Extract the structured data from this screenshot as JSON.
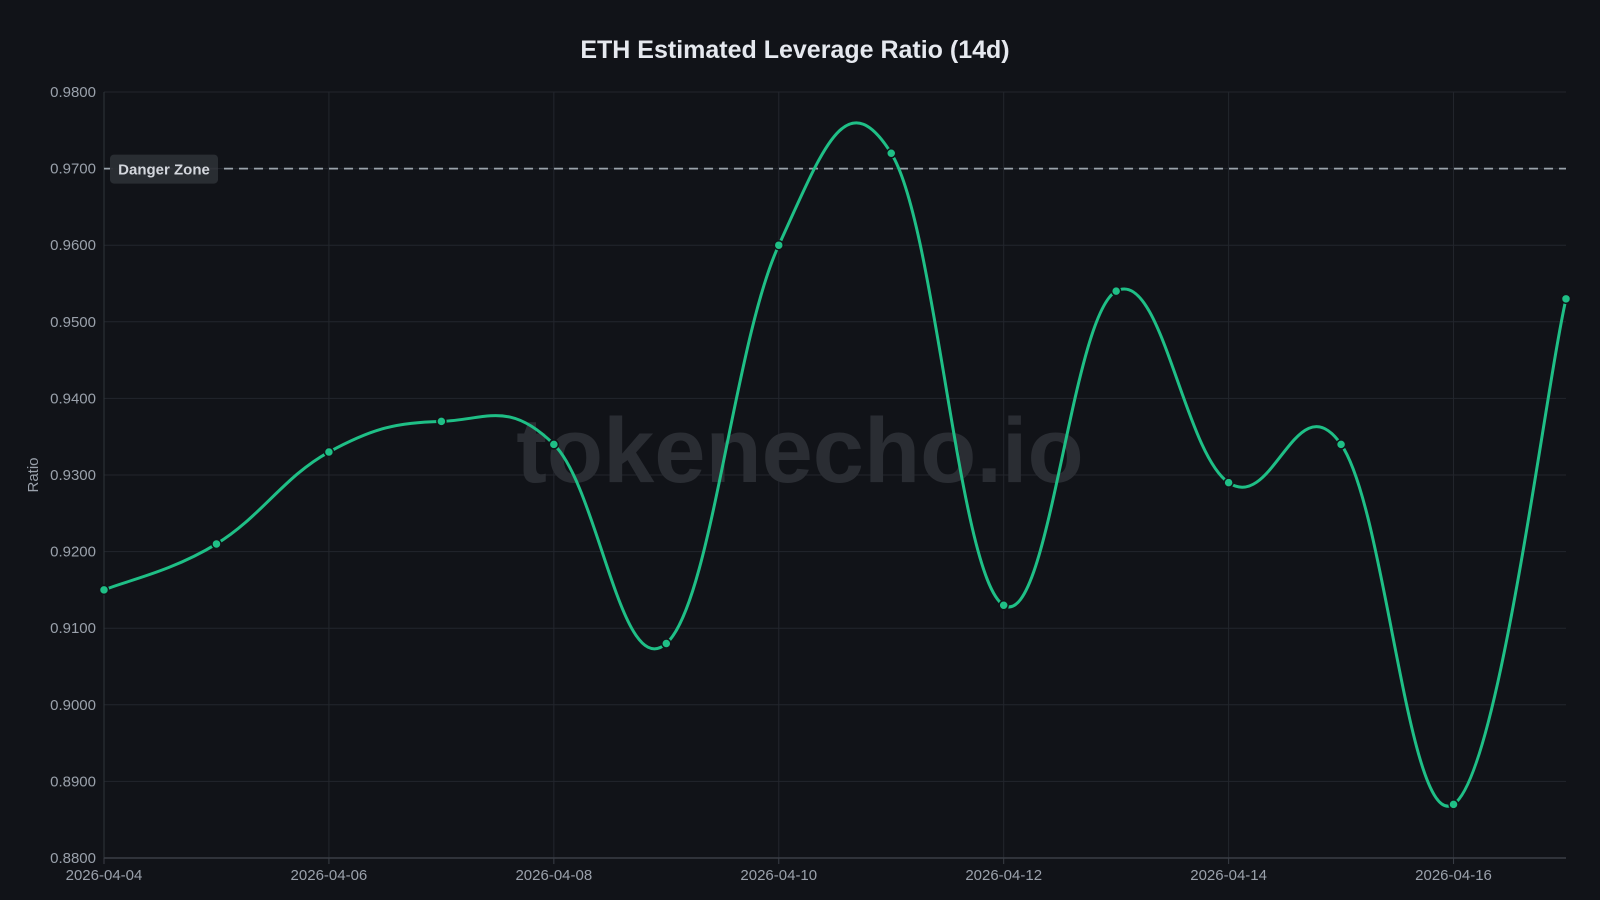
{
  "chart_data": {
    "type": "line",
    "title": "ETH Estimated Leverage Ratio (14d)",
    "xlabel": "",
    "ylabel": "Ratio",
    "ylim": [
      0.88,
      0.98
    ],
    "grid": true,
    "legend": null,
    "x": [
      "2026-04-04",
      "2026-04-05",
      "2026-04-06",
      "2026-04-07",
      "2026-04-08",
      "2026-04-09",
      "2026-04-10",
      "2026-04-11",
      "2026-04-12",
      "2026-04-13",
      "2026-04-14",
      "2026-04-15",
      "2026-04-16",
      "2026-04-17"
    ],
    "series": [
      {
        "name": "Estimated Leverage Ratio",
        "color": "#1fbf86",
        "values": [
          0.915,
          0.921,
          0.933,
          0.937,
          0.934,
          0.908,
          0.96,
          0.972,
          0.913,
          0.954,
          0.929,
          0.934,
          0.887,
          0.953
        ]
      }
    ],
    "y_ticks": [
      "0.8800",
      "0.8900",
      "0.9000",
      "0.9100",
      "0.9200",
      "0.9300",
      "0.9400",
      "0.9500",
      "0.9600",
      "0.9700",
      "0.9800"
    ],
    "x_tick_labels": [
      "2026-04-04",
      "2026-04-06",
      "2026-04-08",
      "2026-04-10",
      "2026-04-12",
      "2026-04-14",
      "2026-04-16"
    ],
    "annotations": [
      {
        "type": "hline",
        "y": 0.97,
        "label": "Danger Zone",
        "style": "dashed",
        "color": "#9aa3ab"
      }
    ],
    "watermark": "tokenecho.io"
  },
  "colors": {
    "background": "#111318",
    "grid": "#23262d",
    "line": "#1fbf86",
    "threshold": "#9aa3ab"
  }
}
